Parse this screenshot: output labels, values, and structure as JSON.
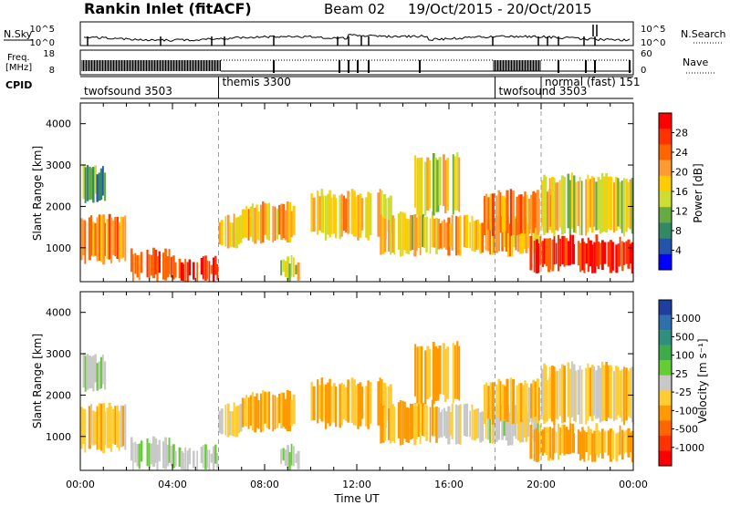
{
  "header": {
    "station": "Rankin Inlet (fitACF)",
    "beam": "Beam 02",
    "date_range": "19/Oct/2015 - 20/Oct/2015"
  },
  "nsky": {
    "label": "N.Sky",
    "tick_top": "10^5",
    "tick_bottom": "10^0",
    "right_label": "N.Search",
    "right_tick_top": "10^5",
    "right_tick_bottom": "10^0"
  },
  "freq": {
    "label_line1": "Freq.",
    "label_line2": "[MHz]",
    "tick_top": "18",
    "tick_bottom": "8",
    "right_label": "Nave",
    "right_tick_top": "60",
    "right_tick_bottom": "0"
  },
  "cpid": {
    "label": "CPID",
    "segments": [
      {
        "label": "twofsound 3503",
        "start_hr": 0
      },
      {
        "label": "themis 3300",
        "start_hr": 6
      },
      {
        "label": "twofsound 3503",
        "start_hr": 18
      },
      {
        "label": "normal (fast) 151",
        "start_hr": 20
      }
    ]
  },
  "power_panel": {
    "ylabel": "Slant Range [km]",
    "colorbar_label": "Power [dB]",
    "colorbar_ticks": [
      "28",
      "24",
      "20",
      "16",
      "12",
      "8",
      "4"
    ],
    "colorbar_colors": [
      "#ff0000",
      "#ff3300",
      "#ff6600",
      "#ff9933",
      "#ffcc00",
      "#ccdd33",
      "#66aa44",
      "#338866",
      "#2255aa",
      "#0000ff"
    ]
  },
  "velocity_panel": {
    "ylabel": "Slant Range [km]",
    "colorbar_label": "Velocity [m s⁻¹]",
    "colorbar_ticks": [
      "1000",
      "500",
      "100",
      "25",
      "-25",
      "-100",
      "-500",
      "-1000"
    ],
    "colorbar_colors": [
      "#1f3fa0",
      "#2f6fae",
      "#2f8f7f",
      "#3faa4a",
      "#66cc33",
      "#c8c8c8",
      "#ffcc33",
      "#ff9900",
      "#ff6600",
      "#ff3300",
      "#ff0000"
    ]
  },
  "x_axis": {
    "label": "Time UT",
    "ticks": [
      "00:00",
      "04:00",
      "08:00",
      "12:00",
      "16:00",
      "20:00",
      "00:00"
    ]
  },
  "chart_data": {
    "type": "heatmap",
    "title": "Rankin Inlet (fitACF) Beam 02 19/Oct/2015 - 20/Oct/2015",
    "xlabel": "Time UT",
    "ylabel": "Slant Range [km]",
    "xlim_hours": [
      0,
      24
    ],
    "ylim_km": [
      180,
      4500
    ],
    "y_ticks_km": [
      1000,
      2000,
      3000,
      4000
    ],
    "x_ticks_hours": [
      0,
      4,
      8,
      12,
      16,
      20,
      24
    ],
    "power_scale_db": [
      0,
      32
    ],
    "velocity_scale_ms": [
      -1000,
      1000
    ],
    "mode_change_hours": [
      6,
      18,
      20
    ],
    "echo_regions": [
      {
        "t0": 0.0,
        "t1": 2.0,
        "r0": 700,
        "r1": 1700,
        "power": 22,
        "velocity": -200
      },
      {
        "t0": 0.1,
        "t1": 1.2,
        "r0": 2200,
        "r1": 2900,
        "power": 10,
        "velocity": 10
      },
      {
        "t0": 2.0,
        "t1": 4.0,
        "r0": 300,
        "r1": 900,
        "power": 24,
        "velocity": 60
      },
      {
        "t0": 4.0,
        "t1": 6.0,
        "r0": 250,
        "r1": 700,
        "power": 28,
        "velocity": 80
      },
      {
        "t0": 6.0,
        "t1": 7.0,
        "r0": 1000,
        "r1": 1700,
        "power": 18,
        "velocity": -150
      },
      {
        "t0": 7.0,
        "t1": 9.3,
        "r0": 1200,
        "r1": 2000,
        "power": 18,
        "velocity": -300
      },
      {
        "t0": 8.5,
        "t1": 9.5,
        "r0": 300,
        "r1": 700,
        "power": 16,
        "velocity": 40
      },
      {
        "t0": 10.0,
        "t1": 13.5,
        "r0": 1300,
        "r1": 2300,
        "power": 18,
        "velocity": -300
      },
      {
        "t0": 13.0,
        "t1": 15.5,
        "r0": 900,
        "r1": 1800,
        "power": 16,
        "velocity": -250
      },
      {
        "t0": 14.5,
        "t1": 16.5,
        "r0": 1900,
        "r1": 3200,
        "power": 16,
        "velocity": -300
      },
      {
        "t0": 15.5,
        "t1": 20.0,
        "r0": 900,
        "r1": 1700,
        "power": 20,
        "velocity": -10
      },
      {
        "t0": 17.5,
        "t1": 20.5,
        "r0": 1400,
        "r1": 2300,
        "power": 22,
        "velocity": -200
      },
      {
        "t0": 19.5,
        "t1": 24.0,
        "r0": 500,
        "r1": 1200,
        "power": 28,
        "velocity": -300
      },
      {
        "t0": 20.0,
        "t1": 24.0,
        "r0": 1400,
        "r1": 2700,
        "power": 16,
        "velocity": -150
      }
    ]
  }
}
